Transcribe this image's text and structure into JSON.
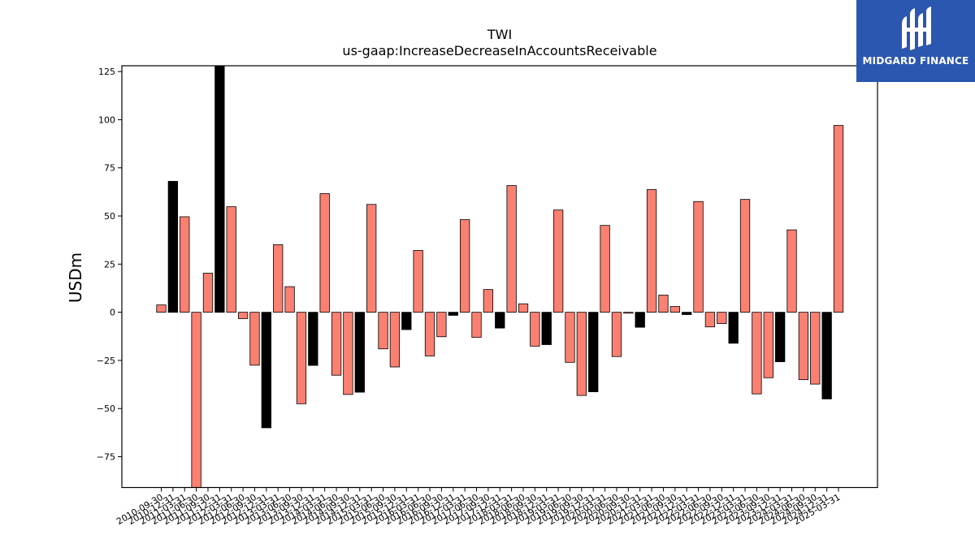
{
  "chart_data": {
    "type": "bar",
    "title": "TWI",
    "subtitle": "us-gaap:IncreaseDecreaseInAccountsReceivable",
    "xlabel": "",
    "ylabel": "USDm",
    "ylim": [
      -91,
      128
    ],
    "yticks": [
      -75,
      -50,
      -25,
      0,
      25,
      50,
      75,
      100,
      125
    ],
    "ytick_labels": [
      "−75",
      "−50",
      "−25",
      "0",
      "25",
      "50",
      "75",
      "100",
      "125"
    ],
    "grid": false,
    "categories": [
      "2010-09-30",
      "2010-12-31",
      "2011-03-31",
      "2011-06-30",
      "2011-09-30",
      "2011-12-31",
      "2012-03-31",
      "2012-06-30",
      "2012-09-30",
      "2012-12-31",
      "2013-03-31",
      "2013-06-30",
      "2013-09-30",
      "2013-12-31",
      "2014-03-31",
      "2014-06-30",
      "2014-09-30",
      "2014-12-31",
      "2015-03-31",
      "2015-06-30",
      "2015-09-30",
      "2015-12-31",
      "2016-03-31",
      "2016-06-30",
      "2016-09-30",
      "2016-12-31",
      "2017-03-31",
      "2017-06-30",
      "2017-09-30",
      "2017-12-31",
      "2018-03-31",
      "2018-06-30",
      "2018-09-30",
      "2018-12-31",
      "2019-03-31",
      "2019-06-30",
      "2019-09-30",
      "2019-12-31",
      "2020-03-31",
      "2020-06-30",
      "2020-09-30",
      "2020-12-31",
      "2021-03-31",
      "2021-06-30",
      "2021-09-30",
      "2021-12-31",
      "2022-03-31",
      "2022-06-30",
      "2022-09-30",
      "2022-12-31",
      "2023-03-31",
      "2023-06-30",
      "2023-09-30",
      "2023-12-31",
      "2024-03-31",
      "2024-06-30",
      "2024-09-30",
      "2024-12-31",
      "2025-03-31"
    ],
    "values": [
      3.8,
      68.0,
      49.6,
      -91.0,
      20.3,
      128.0,
      54.8,
      -3.3,
      -27.5,
      -60.0,
      35.1,
      13.3,
      -47.5,
      -27.6,
      61.6,
      -32.7,
      -42.7,
      -41.5,
      56.0,
      -19.0,
      -28.4,
      -9.0,
      32.1,
      -22.7,
      -12.7,
      -1.6,
      48.1,
      -13.0,
      11.8,
      -8.2,
      65.8,
      4.4,
      -17.6,
      -16.8,
      53.1,
      -26.0,
      -43.2,
      -41.3,
      45.1,
      -23.0,
      -0.5,
      -7.8,
      63.7,
      8.9,
      3.0,
      -1.2,
      57.5,
      -7.6,
      -5.9,
      -16.1,
      58.6,
      -42.4,
      -34.0,
      -25.7,
      42.8,
      -35.0,
      -37.3,
      -45.0,
      97.0
    ],
    "bar_colors": [
      "salmon",
      "black",
      "salmon",
      "salmon",
      "salmon",
      "black",
      "salmon",
      "salmon",
      "salmon",
      "black",
      "salmon",
      "salmon",
      "salmon",
      "black",
      "salmon",
      "salmon",
      "salmon",
      "black",
      "salmon",
      "salmon",
      "salmon",
      "black",
      "salmon",
      "salmon",
      "salmon",
      "black",
      "salmon",
      "salmon",
      "salmon",
      "black",
      "salmon",
      "salmon",
      "salmon",
      "black",
      "salmon",
      "salmon",
      "salmon",
      "black",
      "salmon",
      "salmon",
      "salmon",
      "black",
      "salmon",
      "salmon",
      "salmon",
      "black",
      "salmon",
      "salmon",
      "salmon",
      "black",
      "salmon",
      "salmon",
      "salmon",
      "black",
      "salmon",
      "salmon",
      "salmon",
      "black",
      "salmon"
    ],
    "colors": {
      "salmon": "#fa8072",
      "black": "#000000",
      "edge": "#000000"
    }
  },
  "logo": {
    "text": "MIDGARD FINANCE",
    "background": "#2b57b0",
    "foreground": "#ffffff",
    "icon": "midgard-logo-icon"
  }
}
